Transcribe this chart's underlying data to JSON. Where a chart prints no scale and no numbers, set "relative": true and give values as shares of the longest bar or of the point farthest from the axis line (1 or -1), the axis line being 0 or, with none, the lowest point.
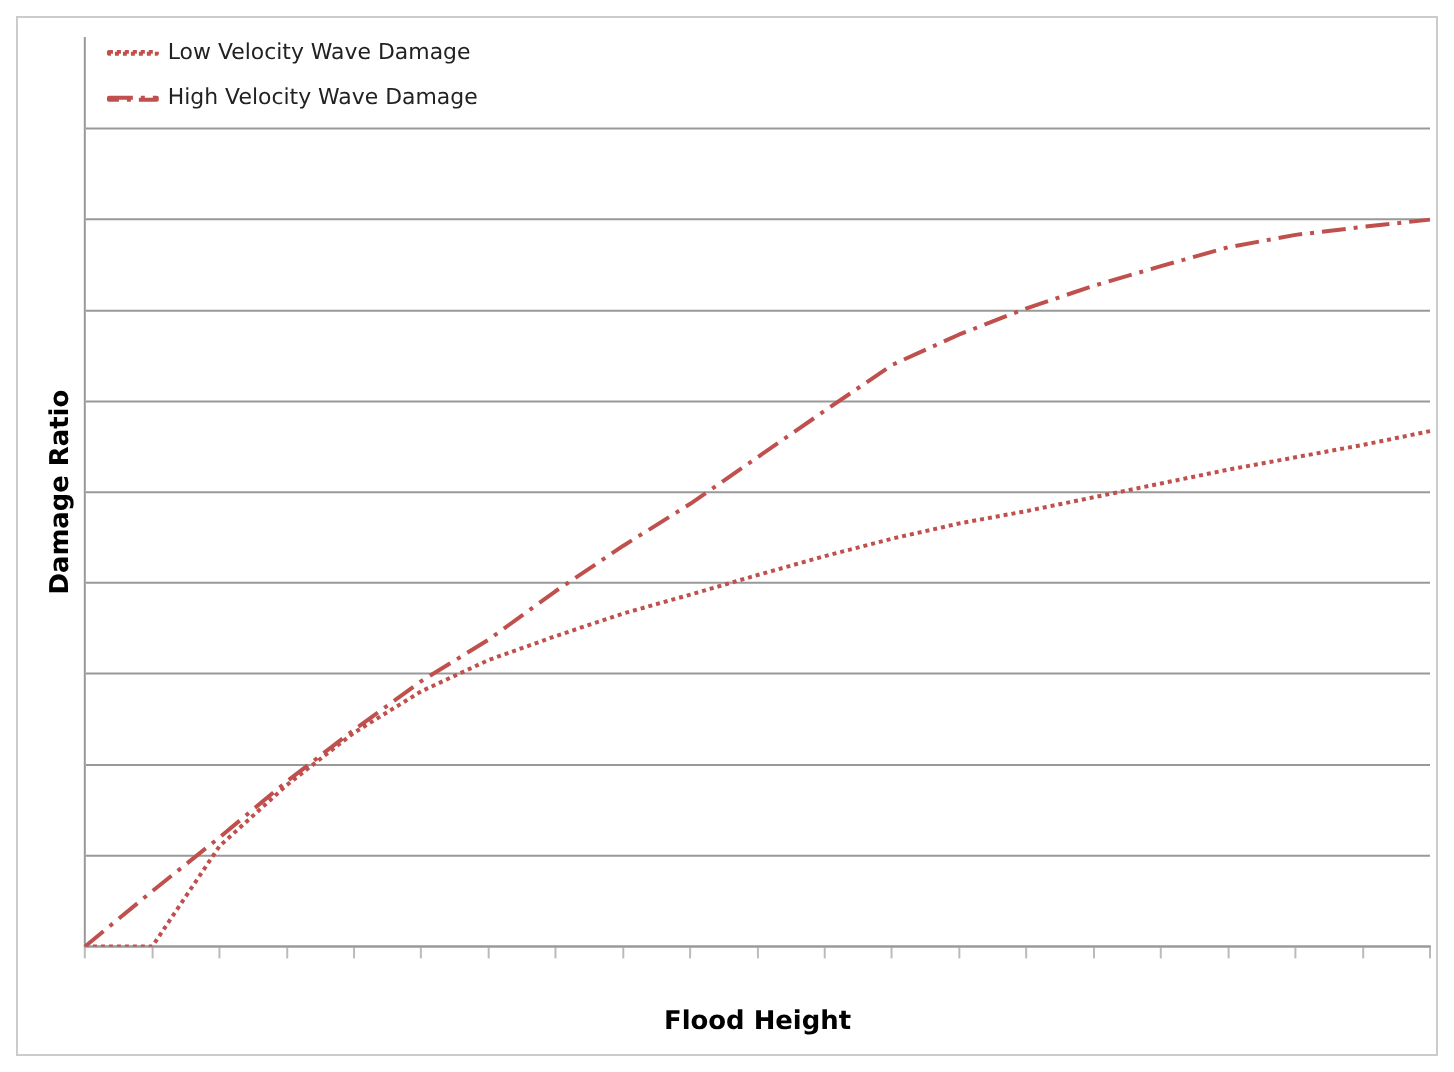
{
  "chart_data": {
    "type": "line",
    "relative": true,
    "xlabel": "Flood Height",
    "ylabel": "Damage Ratio",
    "categories": [
      null,
      null,
      null,
      null,
      null,
      null,
      null,
      null,
      null,
      null,
      null,
      null,
      null,
      null,
      null,
      null,
      null,
      null,
      null,
      null,
      null
    ],
    "series": [
      {
        "name": "Low Velocity Wave Damage",
        "color": "#c0504d",
        "line_style": "dotted",
        "values": [
          0,
          0,
          0.138,
          0.222,
          0.294,
          0.351,
          0.394,
          0.427,
          0.458,
          0.484,
          0.511,
          0.537,
          0.561,
          0.582,
          0.599,
          0.618,
          0.637,
          0.656,
          0.673,
          0.69,
          0.709
        ]
      },
      {
        "name": "High Velocity Wave Damage",
        "color": "#c0504d",
        "line_style": "dashed",
        "values": [
          0,
          0.076,
          0.15,
          0.227,
          0.298,
          0.365,
          0.422,
          0.489,
          0.551,
          0.609,
          0.673,
          0.737,
          0.8,
          0.842,
          0.878,
          0.909,
          0.936,
          0.962,
          0.979,
          0.99,
          1
        ]
      }
    ],
    "grid": "y",
    "legend": "top left",
    "marker": "none"
  }
}
